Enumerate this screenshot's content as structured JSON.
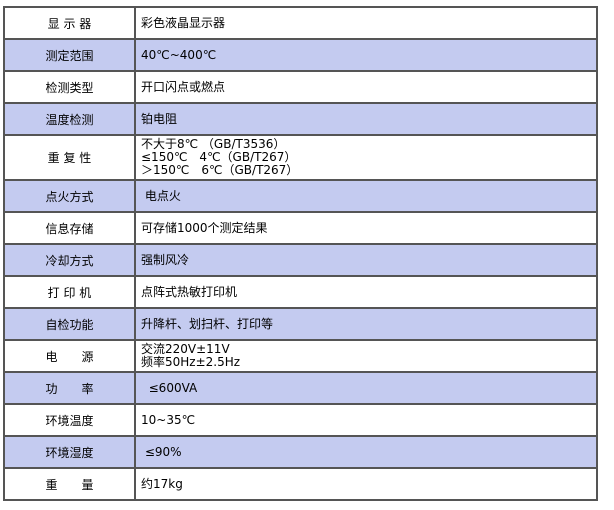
{
  "specs": [
    {
      "label": "显 示 器",
      "value": [
        "彩色液晶显示器"
      ]
    },
    {
      "label": "测定范围",
      "value": [
        "40℃~400℃"
      ]
    },
    {
      "label": "检测类型",
      "value": [
        "开口闪点或燃点"
      ]
    },
    {
      "label": "温度检测",
      "value": [
        "铂电阻"
      ]
    },
    {
      "label": "重 复 性",
      "value": [
        "不大于8℃ （GB/T3536）",
        "≤150℃　4℃（GB/T267）",
        "＞150℃　6℃（GB/T267）"
      ]
    },
    {
      "label": "点火方式",
      "value": [
        " 电点火"
      ]
    },
    {
      "label": "信息存储",
      "value": [
        "可存储1000个测定结果"
      ]
    },
    {
      "label": "冷却方式",
      "value": [
        "强制风冷"
      ]
    },
    {
      "label": "打 印 机",
      "value": [
        "点阵式热敏打印机"
      ]
    },
    {
      "label": "自检功能",
      "value": [
        "升降杆、划扫杆、打印等"
      ]
    },
    {
      "label": "电　　源",
      "value": [
        "交流220V±11V",
        "频率50Hz±2.5Hz"
      ]
    },
    {
      "label": "功　　率",
      "value": [
        "  ≤600VA"
      ]
    },
    {
      "label": "环境温度",
      "value": [
        "10~35℃"
      ]
    },
    {
      "label": "环境湿度",
      "value": [
        " ≤90%"
      ]
    },
    {
      "label": "重　　量",
      "value": [
        "约17kg"
      ]
    }
  ],
  "colors": {
    "alt_row": "#c4cbf0",
    "border": "#555555"
  }
}
